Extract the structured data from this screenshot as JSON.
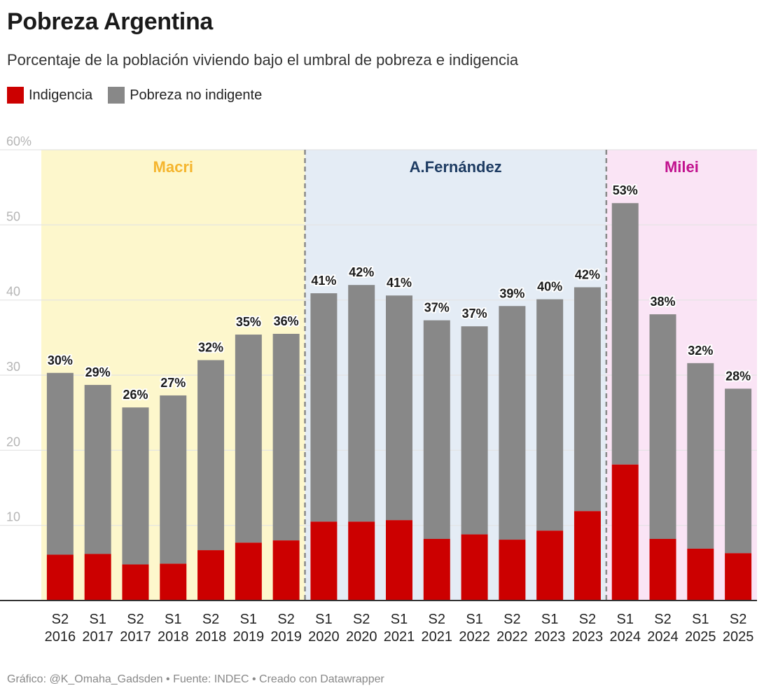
{
  "title": "Pobreza Argentina",
  "subtitle": "Porcentaje de la población viviendo bajo el umbral de pobreza e indigencia",
  "legend": [
    {
      "label": "Indigencia",
      "color": "#cc0000"
    },
    {
      "label": "Pobreza no indigente",
      "color": "#888888"
    }
  ],
  "footer": "Gráfico: @K_Omaha_Gadsden • Fuente: INDEC • Creado con Datawrapper",
  "chart_data": {
    "type": "bar",
    "stacked": true,
    "title": "Pobreza Argentina",
    "ylim": [
      0,
      60
    ],
    "yticks": [
      {
        "value": 60,
        "label": "60%"
      },
      {
        "value": 50,
        "label": "50"
      },
      {
        "value": 40,
        "label": "40"
      },
      {
        "value": 30,
        "label": "30"
      },
      {
        "value": 20,
        "label": "20"
      },
      {
        "value": 10,
        "label": "10"
      }
    ],
    "categories": [
      {
        "half": "S2",
        "year": "2016"
      },
      {
        "half": "S1",
        "year": "2017"
      },
      {
        "half": "S2",
        "year": "2017"
      },
      {
        "half": "S1",
        "year": "2018"
      },
      {
        "half": "S2",
        "year": "2018"
      },
      {
        "half": "S1",
        "year": "2019"
      },
      {
        "half": "S2",
        "year": "2019"
      },
      {
        "half": "S1",
        "year": "2020"
      },
      {
        "half": "S2",
        "year": "2020"
      },
      {
        "half": "S1",
        "year": "2021"
      },
      {
        "half": "S2",
        "year": "2021"
      },
      {
        "half": "S1",
        "year": "2022"
      },
      {
        "half": "S2",
        "year": "2022"
      },
      {
        "half": "S1",
        "year": "2023"
      },
      {
        "half": "S2",
        "year": "2023"
      },
      {
        "half": "S1",
        "year": "2024"
      },
      {
        "half": "S2",
        "year": "2024"
      },
      {
        "half": "S1",
        "year": "2025"
      },
      {
        "half": "S2",
        "year": "2025"
      }
    ],
    "series": [
      {
        "name": "Indigencia",
        "color": "#cc0000",
        "values": [
          6.1,
          6.2,
          4.8,
          4.9,
          6.7,
          7.7,
          8.0,
          10.5,
          10.5,
          10.7,
          8.2,
          8.8,
          8.1,
          9.3,
          11.9,
          18.1,
          8.2,
          6.9,
          6.3
        ]
      },
      {
        "name": "Pobreza no indigente",
        "color": "#888888",
        "values": [
          24.2,
          22.5,
          20.9,
          22.4,
          25.3,
          27.7,
          27.5,
          30.4,
          31.5,
          29.9,
          29.1,
          27.7,
          31.1,
          30.8,
          29.8,
          34.8,
          29.9,
          24.7,
          21.9
        ]
      }
    ],
    "totals_labels": [
      "30%",
      "29%",
      "26%",
      "27%",
      "32%",
      "35%",
      "36%",
      "41%",
      "42%",
      "41%",
      "37%",
      "37%",
      "39%",
      "40%",
      "42%",
      "53%",
      "38%",
      "32%",
      "28%"
    ],
    "periods": [
      {
        "label": "Macri",
        "start": 0,
        "end": 6,
        "bg": "#fdf7cc",
        "color": "#f5b52e"
      },
      {
        "label": "A.Fernández",
        "start": 7,
        "end": 14,
        "bg": "#e4ecf5",
        "color": "#1d3b62"
      },
      {
        "label": "Milei",
        "start": 15,
        "end": 18,
        "bg": "#fae4f5",
        "color": "#c1118e"
      }
    ],
    "gridlines": true,
    "legend_position": "top-left"
  }
}
